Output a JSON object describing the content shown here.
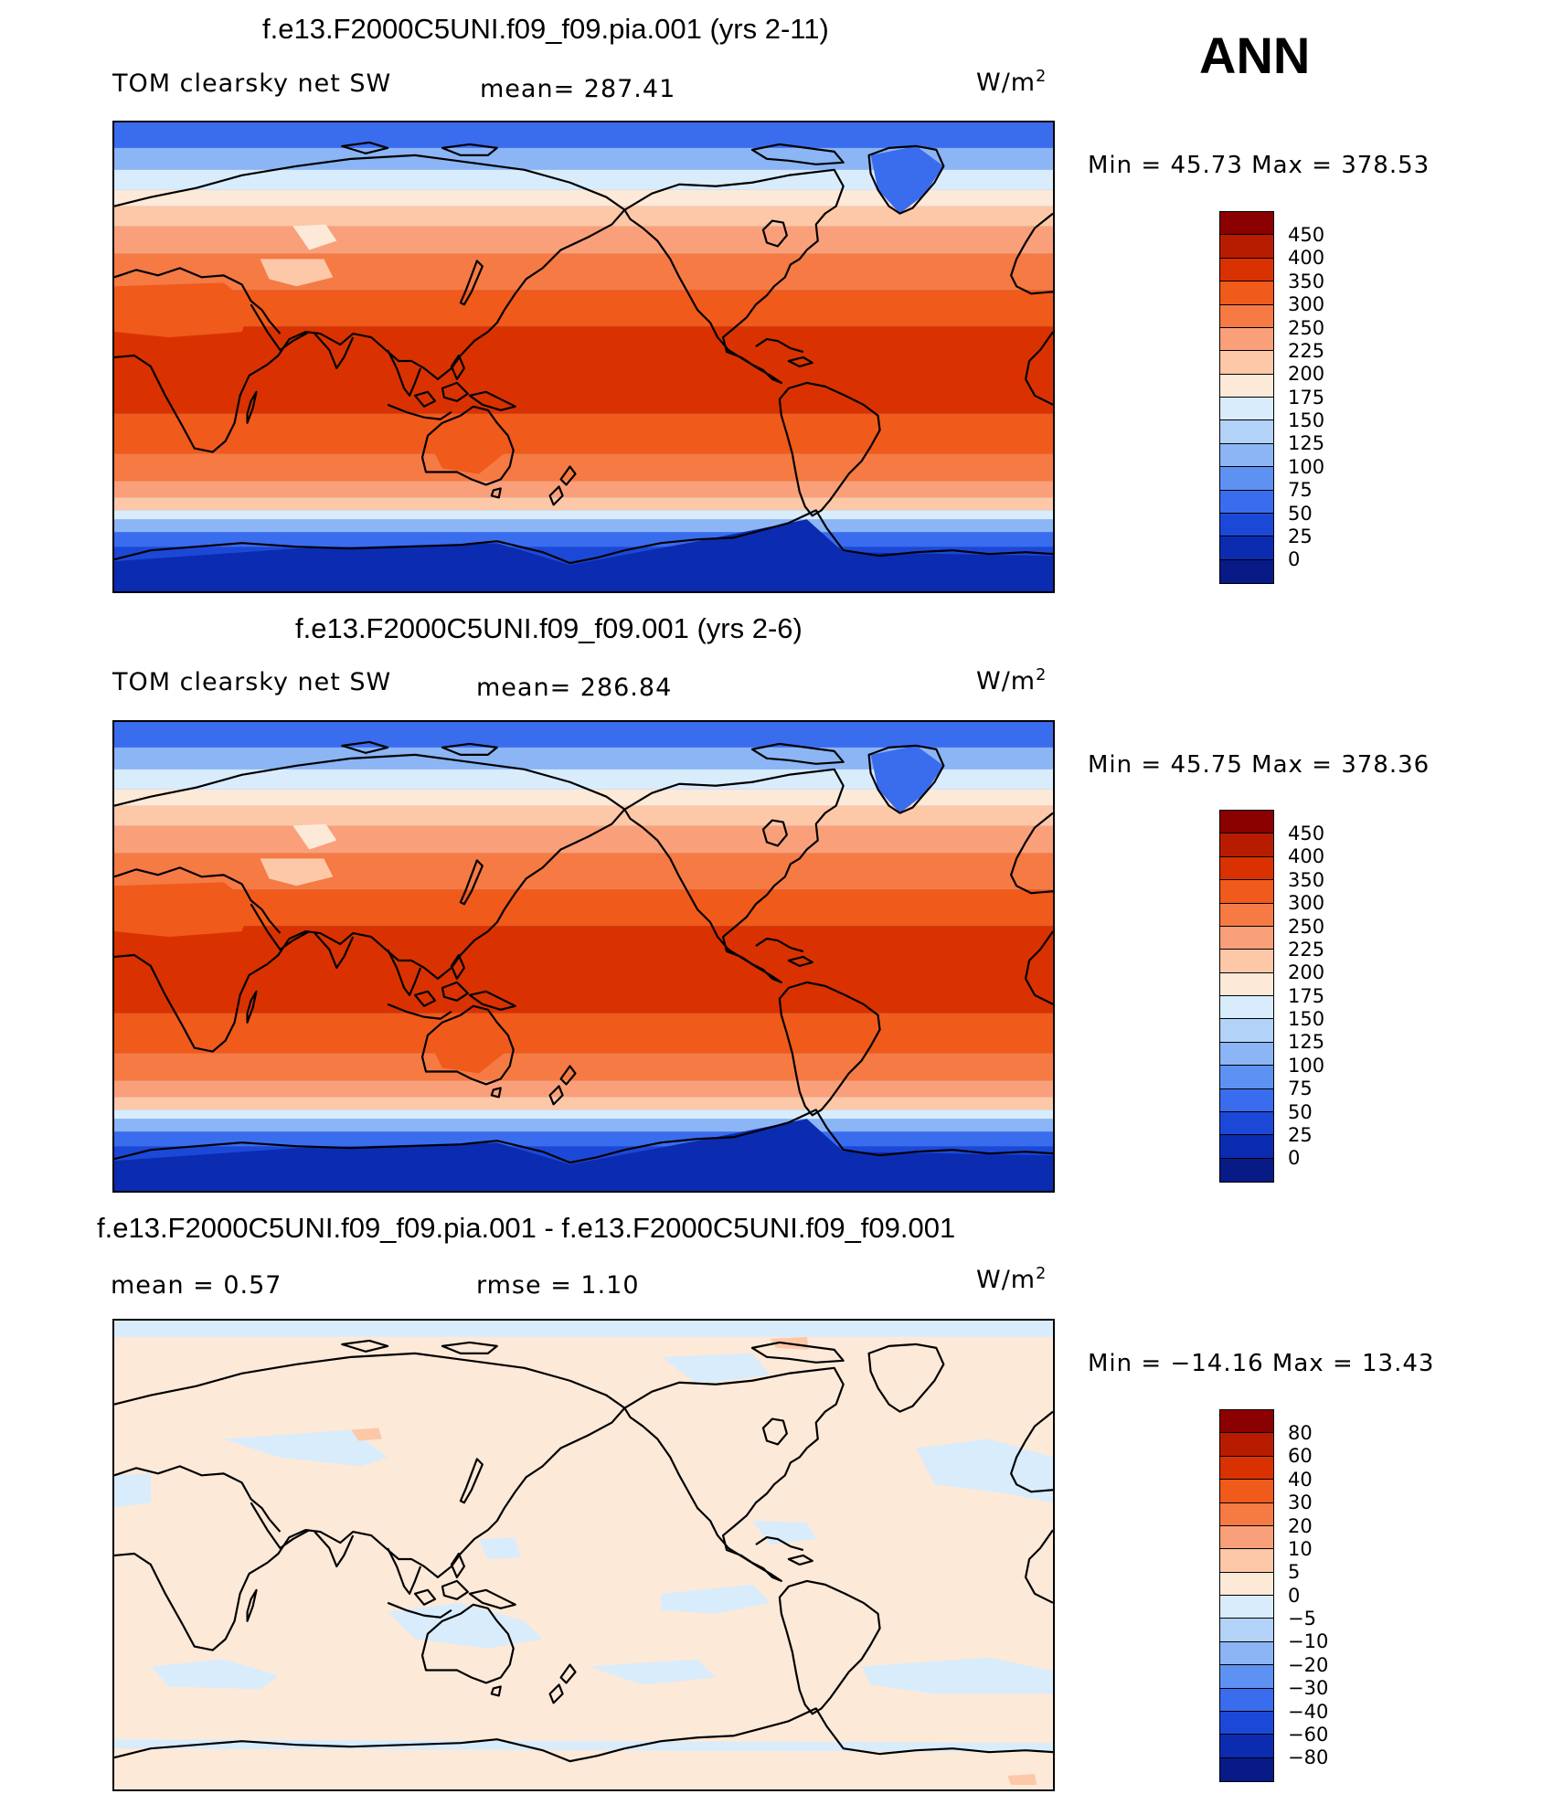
{
  "season": "ANN",
  "panels": [
    {
      "title": "f.e13.F2000C5UNI.f09_f09.pia.001 (yrs 2-11)",
      "left_label": "TOM clearsky net SW",
      "mid_label": "mean=  287.41",
      "units": "W/m",
      "units_sup": "2",
      "minmax": "Min =   45.73  Max  =  378.53",
      "colorbar_labels": [
        "450",
        "400",
        "350",
        "300",
        "250",
        "225",
        "200",
        "175",
        "150",
        "125",
        "100",
        "75",
        "50",
        "25",
        "0"
      ],
      "colorbar_colors": [
        "#8b0000",
        "#b81c00",
        "#d93200",
        "#f05a1a",
        "#f57a44",
        "#f9a07a",
        "#fcc8a8",
        "#fde9d8",
        "#d8ecfc",
        "#b2d2f8",
        "#8bb5f5",
        "#5e92f2",
        "#3a6cee",
        "#1c48d8",
        "#0b2cb0",
        "#071a85"
      ],
      "field": "absolute"
    },
    {
      "title": "f.e13.F2000C5UNI.f09_f09.001 (yrs 2-6)",
      "left_label": "TOM clearsky net SW",
      "mid_label": "mean=  286.84",
      "units": "W/m",
      "units_sup": "2",
      "minmax": "Min =   45.75  Max  =  378.36",
      "colorbar_labels": [
        "450",
        "400",
        "350",
        "300",
        "250",
        "225",
        "200",
        "175",
        "150",
        "125",
        "100",
        "75",
        "50",
        "25",
        "0"
      ],
      "colorbar_colors": [
        "#8b0000",
        "#b81c00",
        "#d93200",
        "#f05a1a",
        "#f57a44",
        "#f9a07a",
        "#fcc8a8",
        "#fde9d8",
        "#d8ecfc",
        "#b2d2f8",
        "#8bb5f5",
        "#5e92f2",
        "#3a6cee",
        "#1c48d8",
        "#0b2cb0",
        "#071a85"
      ],
      "field": "absolute"
    },
    {
      "title": "f.e13.F2000C5UNI.f09_f09.pia.001 - f.e13.F2000C5UNI.f09_f09.001",
      "left_label": "mean =     0.57",
      "mid_label": "rmse =      1.10",
      "units": "W/m",
      "units_sup": "2",
      "minmax": "Min = −14.16  Max  =   13.43",
      "colorbar_labels": [
        "80",
        "60",
        "40",
        "30",
        "20",
        "10",
        "5",
        "0",
        "−5",
        "−10",
        "−20",
        "−30",
        "−40",
        "−60",
        "−80"
      ],
      "colorbar_colors": [
        "#8b0000",
        "#b81c00",
        "#d93200",
        "#f05a1a",
        "#f57a44",
        "#f9a07a",
        "#fcc8a8",
        "#fde9d8",
        "#d8ecfc",
        "#b2d2f8",
        "#8bb5f5",
        "#5e92f2",
        "#3a6cee",
        "#1c48d8",
        "#0b2cb0",
        "#071a85"
      ],
      "field": "difference"
    }
  ]
}
